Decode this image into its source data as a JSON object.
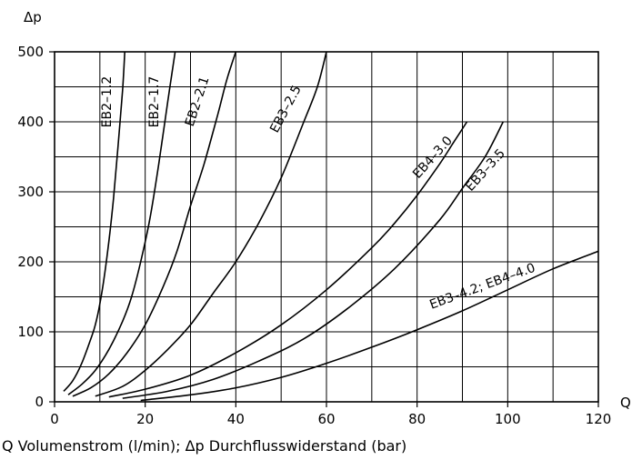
{
  "chart_data": {
    "type": "line",
    "title": "",
    "xlabel": "Q",
    "ylabel": "Δp",
    "xlim": [
      0,
      120
    ],
    "ylim": [
      0,
      500
    ],
    "x_ticks": [
      0,
      20,
      40,
      60,
      80,
      100,
      120
    ],
    "y_ticks": [
      0,
      100,
      200,
      300,
      400,
      500
    ],
    "grid": true,
    "x_grid_step": 10,
    "y_grid_step": 50,
    "series": [
      {
        "name": "EB2–1.2",
        "points": [
          [
            2,
            15
          ],
          [
            4,
            30
          ],
          [
            6,
            55
          ],
          [
            8,
            90
          ],
          [
            9,
            110
          ],
          [
            10,
            140
          ],
          [
            11,
            180
          ],
          [
            12,
            230
          ],
          [
            13,
            290
          ],
          [
            14,
            365
          ],
          [
            15,
            445
          ],
          [
            15.5,
            500
          ]
        ]
      },
      {
        "name": "EB2–1.7",
        "points": [
          [
            3,
            10
          ],
          [
            6,
            25
          ],
          [
            9,
            45
          ],
          [
            12,
            75
          ],
          [
            15,
            115
          ],
          [
            17,
            150
          ],
          [
            19,
            200
          ],
          [
            21,
            260
          ],
          [
            23,
            340
          ],
          [
            25,
            430
          ],
          [
            26.6,
            500
          ]
        ]
      },
      {
        "name": "EB2–2.1",
        "points": [
          [
            4,
            8
          ],
          [
            8,
            20
          ],
          [
            12,
            40
          ],
          [
            16,
            70
          ],
          [
            20,
            110
          ],
          [
            24,
            165
          ],
          [
            27,
            215
          ],
          [
            30,
            280
          ],
          [
            33,
            340
          ],
          [
            36,
            410
          ],
          [
            38,
            460
          ],
          [
            40,
            500
          ]
        ]
      },
      {
        "name": "EB3–2.5",
        "points": [
          [
            9,
            8
          ],
          [
            15,
            22
          ],
          [
            20,
            45
          ],
          [
            25,
            75
          ],
          [
            30,
            110
          ],
          [
            35,
            155
          ],
          [
            40,
            200
          ],
          [
            45,
            255
          ],
          [
            50,
            320
          ],
          [
            55,
            400
          ],
          [
            58,
            450
          ],
          [
            60,
            500
          ]
        ]
      },
      {
        "name": "EB4–3.0",
        "points": [
          [
            12,
            7
          ],
          [
            20,
            18
          ],
          [
            30,
            38
          ],
          [
            40,
            70
          ],
          [
            50,
            110
          ],
          [
            60,
            160
          ],
          [
            70,
            220
          ],
          [
            75,
            255
          ],
          [
            80,
            295
          ],
          [
            85,
            340
          ],
          [
            88,
            370
          ],
          [
            91,
            400
          ]
        ]
      },
      {
        "name": "EB3–3.5",
        "points": [
          [
            15,
            5
          ],
          [
            25,
            15
          ],
          [
            35,
            32
          ],
          [
            45,
            58
          ],
          [
            55,
            90
          ],
          [
            65,
            135
          ],
          [
            75,
            190
          ],
          [
            85,
            260
          ],
          [
            90,
            305
          ],
          [
            95,
            350
          ],
          [
            99,
            400
          ]
        ]
      },
      {
        "name": "EB3–4.2; EB4–4.0",
        "points": [
          [
            19,
            2
          ],
          [
            30,
            10
          ],
          [
            40,
            20
          ],
          [
            50,
            35
          ],
          [
            60,
            55
          ],
          [
            70,
            78
          ],
          [
            80,
            103
          ],
          [
            90,
            130
          ],
          [
            100,
            160
          ],
          [
            110,
            190
          ],
          [
            120,
            215
          ]
        ]
      }
    ]
  },
  "caption": "Q Volumenstrom (l/min); Δp Durchflusswiderstand (bar)"
}
